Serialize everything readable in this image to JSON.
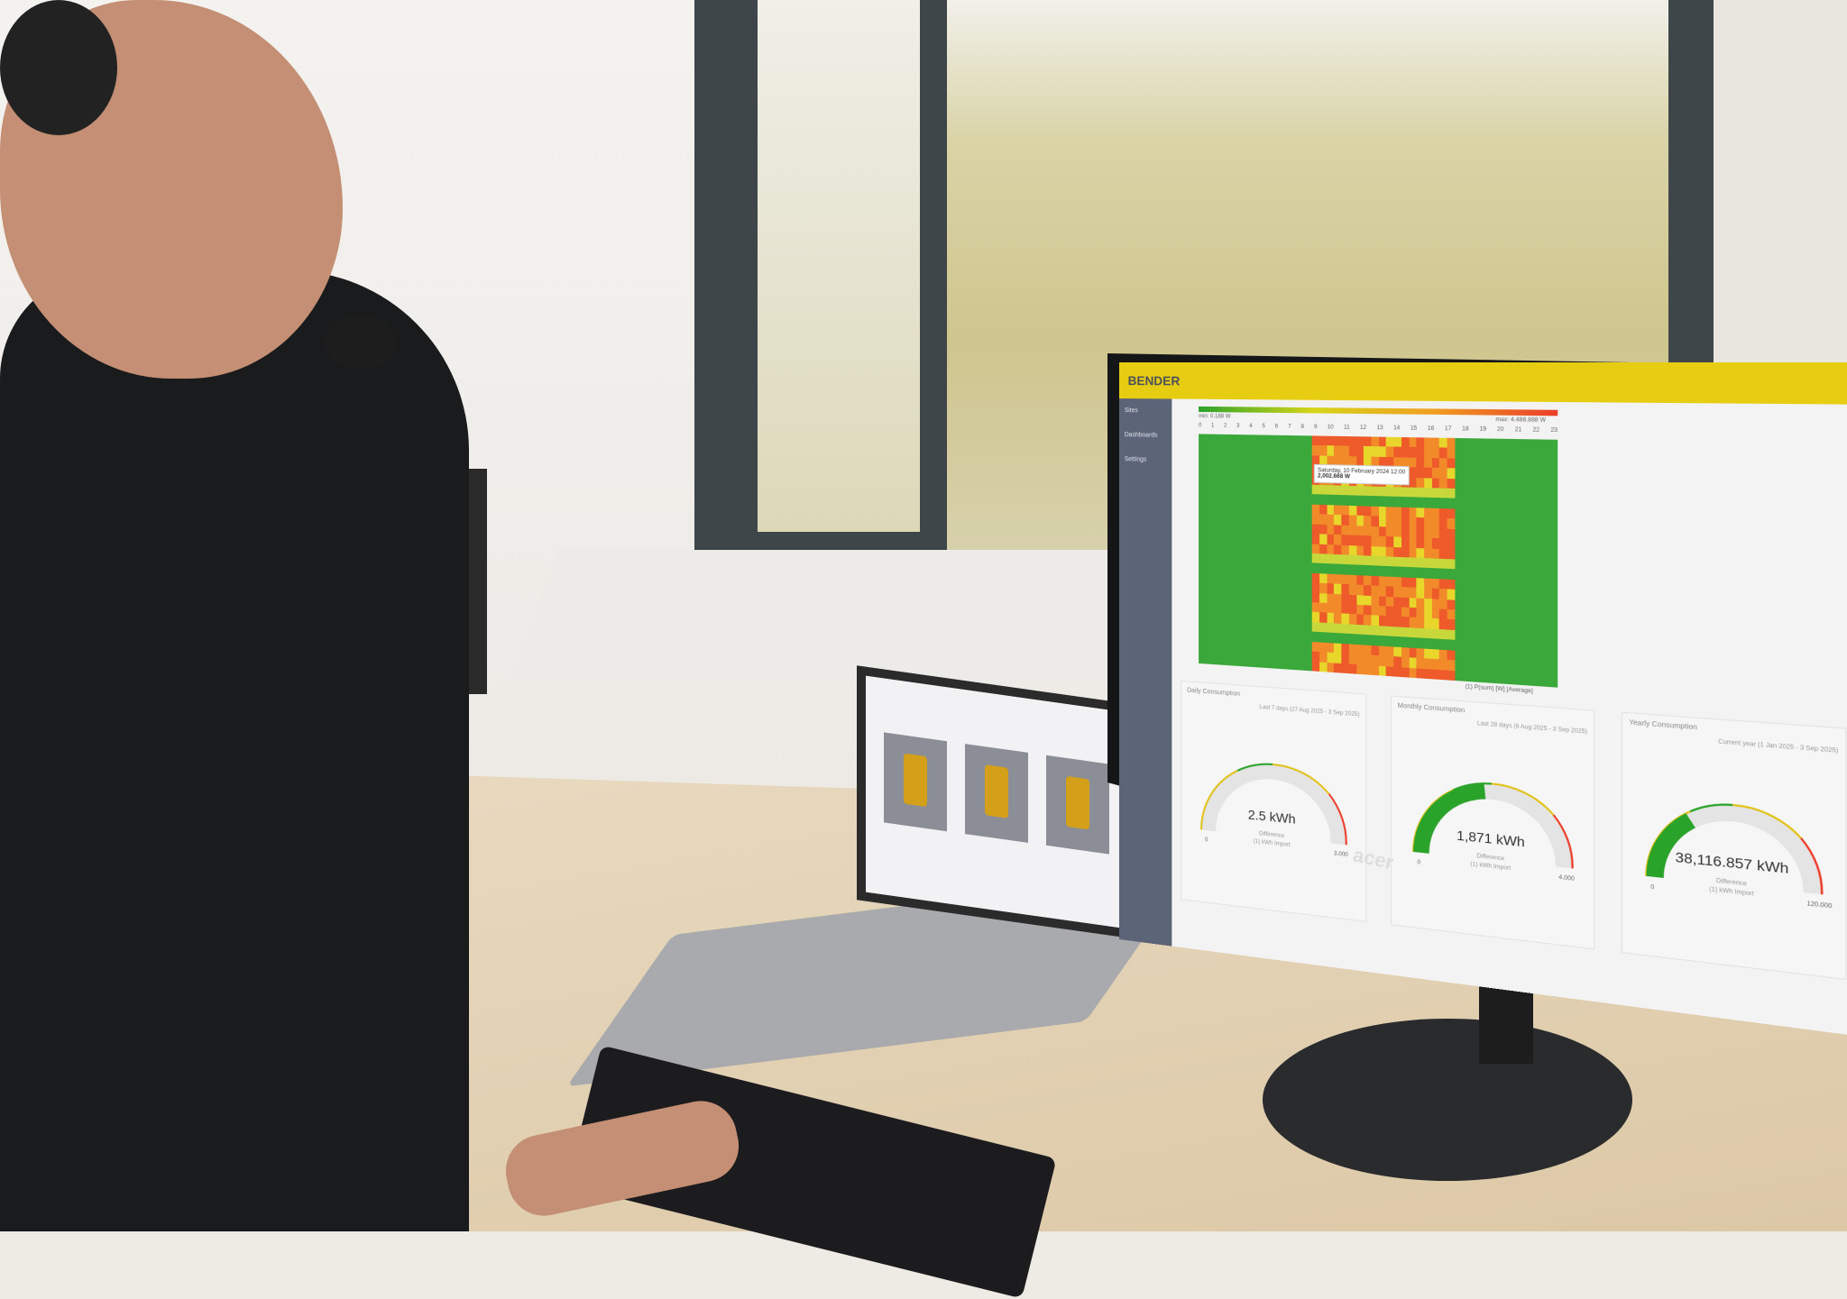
{
  "dashboard": {
    "brand": "BENDER",
    "sidebar": [
      "Sites",
      "Dashboards",
      "Settings"
    ],
    "heatmap": {
      "min_label": "min: 0.188 W",
      "max_label": "max: 4.488.888 W",
      "hours": [
        "0",
        "1",
        "2",
        "3",
        "4",
        "5",
        "6",
        "7",
        "8",
        "9",
        "10",
        "11",
        "12",
        "13",
        "14",
        "15",
        "16",
        "17",
        "18",
        "19",
        "20",
        "21",
        "22",
        "23"
      ],
      "tooltip_date": "Saturday, 10 February 2024 12:00",
      "tooltip_value": "2,002.668 W",
      "caption": "(1) P(sum) [W] [Average]"
    },
    "gauges": [
      {
        "title": "Daily Consumption",
        "range": "Last 7 days (27 Aug 2025 - 3 Sep 2025)",
        "value": "2.5 kWh",
        "sub1": "Difference",
        "sub2": "(1) kWh Import",
        "min": "0",
        "max": "3.000",
        "fill": 0.0
      },
      {
        "title": "Monthly Consumption",
        "range": "Last 28 days (6 Aug 2025 - 3 Sep 2025)",
        "value": "1,871 kWh",
        "sub1": "Difference",
        "sub2": "(1) kWh Import",
        "min": "0",
        "max": "4.000",
        "fill": 0.47
      },
      {
        "title": "Yearly Consumption",
        "range": "Current year (1 Jan 2025 - 3 Sep 2025)",
        "value": "38,116.857 kWh",
        "sub1": "Difference",
        "sub2": "(1) kWh Import",
        "min": "0",
        "max": "120.000",
        "fill": 0.32
      }
    ]
  },
  "monitor_brand": "acer",
  "colors": {
    "header": "#e7cd12",
    "sidebar": "#5c6478",
    "good": "#2aa32a",
    "warn": "#e0c21a",
    "bad": "#ec3d2a"
  }
}
